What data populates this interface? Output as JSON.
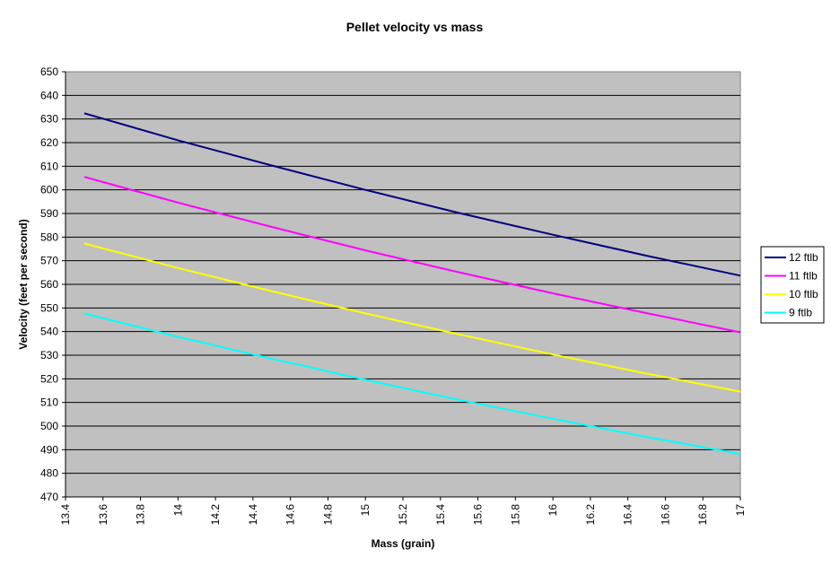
{
  "chart_data": {
    "type": "line",
    "title": "Pellet velocity vs mass",
    "xlabel": "Mass (grain)",
    "ylabel": "Velocity (feet per second)",
    "xlim": [
      13.4,
      17
    ],
    "ylim": [
      470,
      650
    ],
    "xticks": [
      "13.4",
      "13.6",
      "13.8",
      "14",
      "14.2",
      "14.4",
      "14.6",
      "14.8",
      "15",
      "15.2",
      "15.4",
      "15.6",
      "15.8",
      "16",
      "16.2",
      "16.4",
      "16.6",
      "16.8",
      "17"
    ],
    "yticks": [
      "470",
      "480",
      "490",
      "500",
      "510",
      "520",
      "530",
      "540",
      "550",
      "560",
      "570",
      "580",
      "590",
      "600",
      "610",
      "620",
      "630",
      "640",
      "650"
    ],
    "grid": "horizontal",
    "legend_position": "right",
    "plot_background": "#c0c0c0",
    "x": [
      13.5,
      14.0,
      14.5,
      15.0,
      15.5,
      16.0,
      16.5,
      17.0
    ],
    "series": [
      {
        "name": "12 ftlb",
        "color": "#000080",
        "values": [
          632.4,
          621.0,
          610.3,
          600.0,
          590.2,
          581.0,
          572.1,
          563.7
        ]
      },
      {
        "name": "11 ftlb",
        "color": "#ff00ff",
        "values": [
          605.5,
          594.6,
          584.3,
          574.4,
          565.1,
          556.2,
          547.8,
          539.7
        ]
      },
      {
        "name": "10 ftlb",
        "color": "#ffff00",
        "values": [
          577.3,
          566.9,
          557.1,
          547.7,
          538.8,
          530.3,
          522.2,
          514.6
        ]
      },
      {
        "name": "9 ftlb",
        "color": "#00ffff",
        "values": [
          547.7,
          537.8,
          528.5,
          519.6,
          511.1,
          503.1,
          495.4,
          488.2
        ]
      }
    ]
  }
}
